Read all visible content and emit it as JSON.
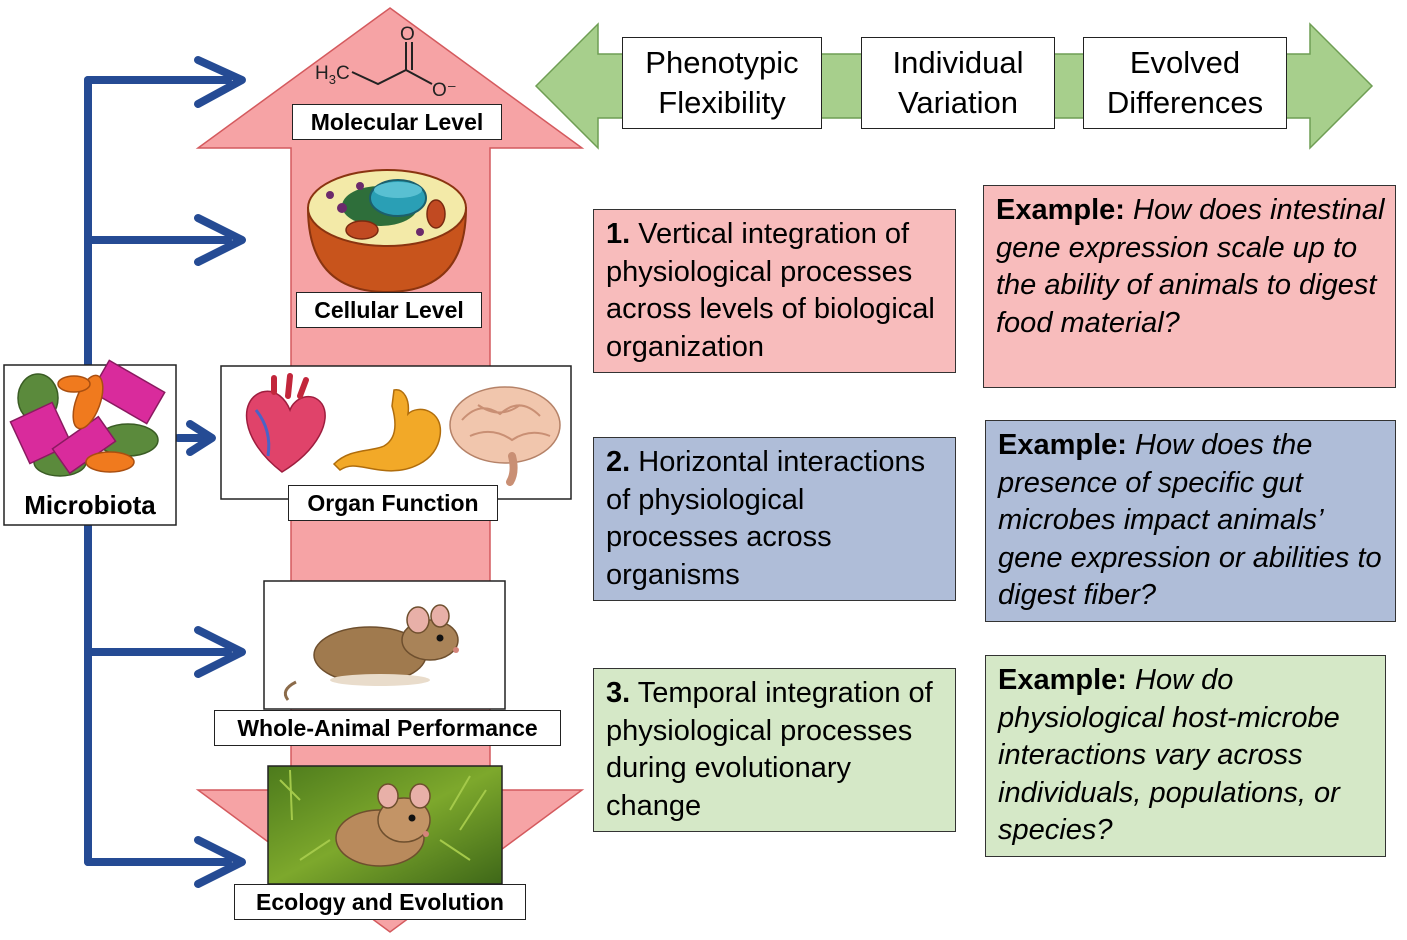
{
  "colors": {
    "level_arrow": "#f6a3a5",
    "microbiota_arrow": "#254b94",
    "scale_arrow": "#a7cf8c",
    "pink_box": "#f8bcbc",
    "blue_box": "#afbdd8",
    "green_box": "#d5e8c7"
  },
  "molecule": {
    "h3c": "H3C",
    "o_top": "O",
    "o_minus": "O⁻"
  },
  "levels": {
    "molecular": "Molecular Level",
    "cellular": "Cellular Level",
    "organ": "Organ Function",
    "whole_animal": "Whole-Animal Performance",
    "ecology": "Ecology and Evolution"
  },
  "microbiota": {
    "label": "Microbiota"
  },
  "phenotype_scale": {
    "items": [
      {
        "line1": "Phenotypic",
        "line2": "Flexibility"
      },
      {
        "line1": "Individual",
        "line2": "Variation"
      },
      {
        "line1": "Evolved",
        "line2": "Differences"
      }
    ]
  },
  "integrations": [
    {
      "num": "1.",
      "text": "Vertical integration of physiological processes across levels of biological organization"
    },
    {
      "num": "2.",
      "text": "Horizontal interactions of physiological processes across organisms"
    },
    {
      "num": "3.",
      "text": "Temporal integration of physiological processes during evolutionary change"
    }
  ],
  "examples": [
    {
      "label": "Example:",
      "question": "How does intestinal gene expression scale up to the ability of animals to digest food material?"
    },
    {
      "label": "Example:",
      "question": "How does the presence of specific gut microbes impact animals’ gene expression or abilities to digest fiber?"
    },
    {
      "label": "Example:",
      "question": "How do physiological host-microbe interactions vary across individuals, populations, or species?"
    }
  ],
  "icons": [
    "heart-icon",
    "stomach-icon",
    "brain-icon",
    "cell-icon",
    "mouse-icon",
    "bacteria-icon"
  ]
}
